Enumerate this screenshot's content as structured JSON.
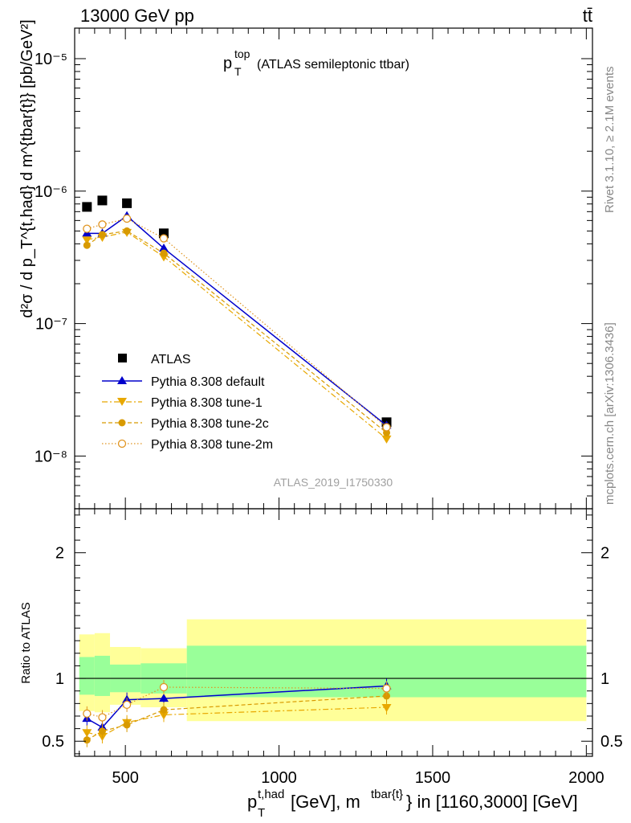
{
  "header": {
    "beam": "13000 GeV pp",
    "process": "tt̄",
    "side_rivet": "Rivet 3.1.10, ≥ 2.1M events",
    "side_site": "mcplots.cern.ch [arXiv:1306.3436]",
    "analysis_id": "ATLAS_2019_I1750330"
  },
  "chart_data": [
    {
      "type": "line",
      "panel": "main",
      "title_main": "p",
      "title_sub": "T",
      "title_sup": "top",
      "title_rest": "(ATLAS semileptonic ttbar)",
      "ylabel": "d²σ / d p_T^{t,had} d m^{tbar{t}} [pb/GeV²]",
      "yscale": "log",
      "ylim": [
        4e-09,
        1.7e-05
      ],
      "xlim": [
        335,
        2020
      ],
      "y_ticklabels": [
        "10⁻⁸",
        "10⁻⁷",
        "10⁻⁶",
        "10⁻⁵"
      ],
      "legend_position": "lower-left",
      "series": [
        {
          "name": "ATLAS",
          "color": "#000000",
          "style": "square",
          "x": [
            375,
            425,
            505,
            625,
            1350
          ],
          "y": [
            7.6e-07,
            8.5e-07,
            8.1e-07,
            4.8e-07,
            1.8e-08
          ]
        },
        {
          "name": "Pythia 8.308 default",
          "color": "#0000cc",
          "style": "solid-triangle-up",
          "x": [
            375,
            425,
            505,
            625,
            1350
          ],
          "y": [
            4.8e-07,
            4.8e-07,
            6.5e-07,
            3.7e-07,
            1.7e-08
          ]
        },
        {
          "name": "Pythia 8.308 tune-1",
          "color": "#e8a800",
          "style": "dashdot-triangle-down",
          "x": [
            375,
            425,
            505,
            625,
            1350
          ],
          "y": [
            4.3e-07,
            4.5e-07,
            4.9e-07,
            3.2e-07,
            1.35e-08
          ]
        },
        {
          "name": "Pythia 8.308 tune-2c",
          "color": "#d89a00",
          "style": "dashed-circle",
          "x": [
            375,
            425,
            505,
            625,
            1350
          ],
          "y": [
            3.9e-07,
            4.7e-07,
            5e-07,
            3.4e-07,
            1.5e-08
          ]
        },
        {
          "name": "Pythia 8.308 tune-2m",
          "color": "#e09420",
          "style": "dotted-open-circle",
          "x": [
            375,
            425,
            505,
            625,
            1350
          ],
          "y": [
            5.2e-07,
            5.6e-07,
            6.2e-07,
            4.4e-07,
            1.65e-08
          ]
        }
      ]
    },
    {
      "type": "line",
      "panel": "ratio",
      "ylabel": "Ratio to ATLAS",
      "xlabel_main": "p",
      "xlabel_sub": "T",
      "xlabel_sup": "t,had",
      "xlabel_mid": " [GeV], m",
      "xlabel_sup2": "tbar{t}",
      "xlabel_rest": "} in [1160,3000] [GeV]",
      "ylim": [
        0.38,
        2.35
      ],
      "xlim": [
        335,
        2020
      ],
      "x_ticks": [
        500,
        1000,
        1500,
        2000
      ],
      "x_ticklabels": [
        "500",
        "1000",
        "1500",
        "2000"
      ],
      "y_ticks": [
        0.5,
        1,
        2
      ],
      "y_ticklabels": [
        "0.5",
        "1",
        "2"
      ],
      "bands": [
        {
          "x0": 350,
          "x1": 400,
          "green": [
            0.87,
            1.17
          ],
          "yellow": [
            0.74,
            1.35
          ]
        },
        {
          "x0": 400,
          "x1": 450,
          "green": [
            0.86,
            1.18
          ],
          "yellow": [
            0.73,
            1.36
          ]
        },
        {
          "x0": 450,
          "x1": 550,
          "green": [
            0.89,
            1.11
          ],
          "yellow": [
            0.79,
            1.25
          ]
        },
        {
          "x0": 550,
          "x1": 700,
          "green": [
            0.88,
            1.12
          ],
          "yellow": [
            0.77,
            1.24
          ]
        },
        {
          "x0": 700,
          "x1": 2000,
          "green": [
            0.85,
            1.26
          ],
          "yellow": [
            0.66,
            1.47
          ]
        }
      ],
      "series": [
        {
          "name": "Pythia 8.308 default",
          "color": "#0000cc",
          "x": [
            375,
            425,
            505,
            625,
            1350
          ],
          "y": [
            0.68,
            0.61,
            0.83,
            0.84,
            0.94
          ]
        },
        {
          "name": "Pythia 8.308 tune-1",
          "color": "#e8a800",
          "x": [
            375,
            425,
            505,
            625,
            1350
          ],
          "y": [
            0.57,
            0.54,
            0.65,
            0.71,
            0.77
          ]
        },
        {
          "name": "Pythia 8.308 tune-2c",
          "color": "#d89a00",
          "x": [
            375,
            425,
            505,
            625,
            1350
          ],
          "y": [
            0.51,
            0.58,
            0.63,
            0.75,
            0.86
          ]
        },
        {
          "name": "Pythia 8.308 tune-2m",
          "color": "#e09420",
          "x": [
            375,
            425,
            505,
            625,
            1350
          ],
          "y": [
            0.72,
            0.69,
            0.79,
            0.93,
            0.92
          ]
        }
      ]
    }
  ]
}
